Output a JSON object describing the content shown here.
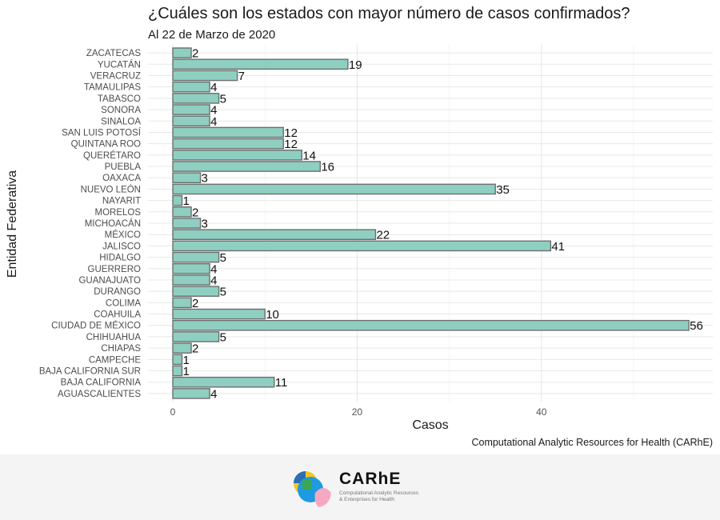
{
  "chart_data": {
    "type": "bar",
    "orientation": "horizontal",
    "title": "¿Cuáles son los estados con mayor número de casos confirmados?",
    "subtitle": "Al 22 de Marzo de 2020",
    "xlabel": "Casos",
    "ylabel": "Entidad Federativa",
    "caption": "Computational Analytic Resources for Health (CARhE)",
    "xlim": [
      0,
      58
    ],
    "xticks": [
      0,
      20,
      40
    ],
    "grid": true,
    "bar_color": "#8ecfc1",
    "bar_edge_color": "#6e6e6e",
    "categories": [
      "ZACATECAS",
      "YUCATÁN",
      "VERACRUZ",
      "TAMAULIPAS",
      "TABASCO",
      "SONORA",
      "SINALOA",
      "SAN LUIS POTOSÍ",
      "QUINTANA ROO",
      "QUERÉTARO",
      "PUEBLA",
      "OAXACA",
      "NUEVO LEÓN",
      "NAYARIT",
      "MORELOS",
      "MICHOACÁN",
      "MÉXICO",
      "JALISCO",
      "HIDALGO",
      "GUERRERO",
      "GUANAJUATO",
      "DURANGO",
      "COLIMA",
      "COAHUILA",
      "CIUDAD DE MÉXICO",
      "CHIHUAHUA",
      "CHIAPAS",
      "CAMPECHE",
      "BAJA CALIFORNIA SUR",
      "BAJA CALIFORNIA",
      "AGUASCALIENTES"
    ],
    "values": [
      2,
      19,
      7,
      4,
      5,
      4,
      4,
      12,
      12,
      14,
      16,
      3,
      35,
      1,
      2,
      3,
      22,
      41,
      5,
      4,
      4,
      5,
      2,
      10,
      56,
      5,
      2,
      1,
      1,
      11,
      4
    ]
  },
  "footer": {
    "logo_name": "CARhE",
    "logo_tagline_1": "Computational Analytic Resources",
    "logo_tagline_2": "& Enterprises for Health"
  }
}
